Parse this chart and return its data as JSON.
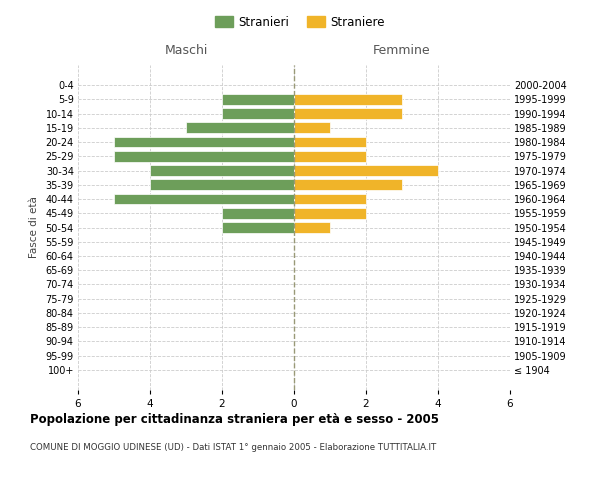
{
  "age_groups": [
    "100+",
    "95-99",
    "90-94",
    "85-89",
    "80-84",
    "75-79",
    "70-74",
    "65-69",
    "60-64",
    "55-59",
    "50-54",
    "45-49",
    "40-44",
    "35-39",
    "30-34",
    "25-29",
    "20-24",
    "15-19",
    "10-14",
    "5-9",
    "0-4"
  ],
  "birth_years": [
    "≤ 1904",
    "1905-1909",
    "1910-1914",
    "1915-1919",
    "1920-1924",
    "1925-1929",
    "1930-1934",
    "1935-1939",
    "1940-1944",
    "1945-1949",
    "1950-1954",
    "1955-1959",
    "1960-1964",
    "1965-1969",
    "1970-1974",
    "1975-1979",
    "1980-1984",
    "1985-1989",
    "1990-1994",
    "1995-1999",
    "2000-2004"
  ],
  "males": [
    0,
    0,
    0,
    0,
    0,
    0,
    0,
    0,
    0,
    0,
    2,
    2,
    5,
    4,
    4,
    5,
    5,
    3,
    2,
    2,
    0
  ],
  "females": [
    0,
    0,
    0,
    0,
    0,
    0,
    0,
    0,
    0,
    0,
    1,
    2,
    2,
    3,
    4,
    2,
    2,
    1,
    3,
    3,
    0
  ],
  "color_male": "#6d9e5a",
  "color_female": "#f0b429",
  "title": "Popolazione per cittadinanza straniera per età e sesso - 2005",
  "subtitle": "COMUNE DI MOGGIO UDINESE (UD) - Dati ISTAT 1° gennaio 2005 - Elaborazione TUTTITALIA.IT",
  "xlabel_left": "Maschi",
  "xlabel_right": "Femmine",
  "ylabel_left": "Fasce di età",
  "legend_male": "Stranieri",
  "legend_female": "Straniere",
  "xlim": 6,
  "background_color": "#ffffff",
  "grid_color": "#cccccc"
}
